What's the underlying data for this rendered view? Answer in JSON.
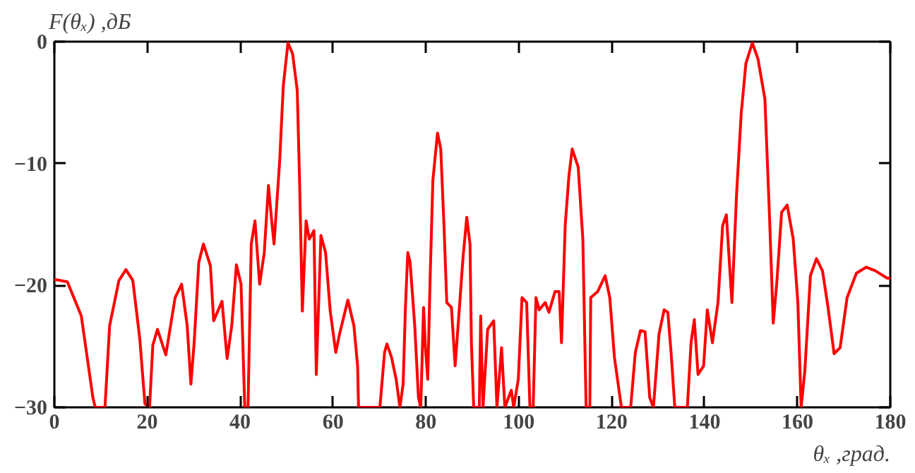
{
  "chart_data": {
    "type": "line",
    "xlabel": "θₓ ,град.",
    "ylabel": "F(θₓ) ,дБ",
    "xlim": [
      0,
      180
    ],
    "xticks": [
      0,
      20,
      40,
      60,
      80,
      100,
      120,
      140,
      160,
      180
    ],
    "ylim": [
      -30,
      0
    ],
    "yticks": [
      -30,
      -20,
      -10,
      0
    ],
    "grid": false,
    "marker": "none",
    "line_style": "solid",
    "x": [
      0,
      2.8,
      5.8,
      8.3,
      8.8,
      10.9,
      11.9,
      13.9,
      15.4,
      16.9,
      18.4,
      19.5,
      20.5,
      21.2,
      22.2,
      24,
      26,
      27.4,
      28.6,
      29.4,
      30.1,
      31.1,
      32.1,
      33.6,
      34.3,
      36.1,
      37.2,
      38.2,
      39.2,
      40.2,
      41,
      41.7,
      42.4,
      43.2,
      44.2,
      45.2,
      46.1,
      46.8,
      47.3,
      48.5,
      49.3,
      50.3,
      51.3,
      52.3,
      52.8,
      53.4,
      54.2,
      54.9,
      55.9,
      56.4,
      57.4,
      58.4,
      59.4,
      60.6,
      61.4,
      63.2,
      64.5,
      65.3,
      65.5,
      70.1,
      71.1,
      71.6,
      72.6,
      73.6,
      74.4,
      75.1,
      75.6,
      76.1,
      76.6,
      77.6,
      78.4,
      78.9,
      79.5,
      79.9,
      80.4,
      80.9,
      81.5,
      82.5,
      83.2,
      83.9,
      84.5,
      85.5,
      86.3,
      87.3,
      88,
      88.8,
      89.5,
      89.8,
      90.3,
      91.5,
      91.8,
      92.3,
      93.3,
      94.6,
      95.3,
      96.3,
      97,
      98.4,
      98.9,
      99.9,
      100.7,
      101.7,
      102.4,
      103.1,
      103.7,
      104.4,
      105.7,
      106.5,
      107.8,
      108.7,
      109.2,
      110,
      110.8,
      111.5,
      112.8,
      113.8,
      114.5,
      115.3,
      115.5,
      117,
      118.6,
      119.6,
      120.6,
      122.1,
      124.1,
      125.1,
      126.2,
      127.2,
      128.2,
      129,
      130.2,
      131.3,
      132.1,
      132.8,
      133.6,
      136.3,
      137.1,
      137.8,
      138.6,
      139.8,
      140.6,
      141.7,
      142.9,
      143.9,
      144.7,
      145.9,
      146.9,
      147.9,
      148.9,
      150.3,
      151.5,
      153,
      154,
      154.8,
      155.6,
      156.6,
      157.8,
      159.1,
      160.1,
      160.8,
      161.6,
      162.8,
      164.1,
      165.4,
      166.6,
      167.9,
      169.2,
      170.7,
      172.7,
      174.8,
      176.8,
      179.3,
      180
    ],
    "values": [
      -19.5,
      -19.7,
      -22.5,
      -29.2,
      -30,
      -30,
      -23.3,
      -19.6,
      -18.7,
      -19.6,
      -24.4,
      -29.7,
      -30,
      -24.9,
      -23.6,
      -25.7,
      -21,
      -19.9,
      -23.3,
      -28.1,
      -24.7,
      -18.1,
      -16.6,
      -18.4,
      -22.9,
      -21.3,
      -26,
      -23.3,
      -18.3,
      -19.9,
      -30,
      -30,
      -16.6,
      -14.7,
      -19.9,
      -17.3,
      -11.8,
      -14.7,
      -16.6,
      -9.9,
      -3.6,
      -0.1,
      -1,
      -4,
      -11.4,
      -22.1,
      -14.7,
      -16.2,
      -15.5,
      -27.3,
      -15.9,
      -17.3,
      -22.1,
      -25.5,
      -24,
      -21.2,
      -23.3,
      -26.6,
      -30,
      -30,
      -25.5,
      -24.8,
      -25.9,
      -27.7,
      -30,
      -28.1,
      -21.8,
      -17.3,
      -18.1,
      -23.3,
      -29.2,
      -30,
      -21.8,
      -25.1,
      -27.7,
      -19.6,
      -11.4,
      -7.5,
      -8.8,
      -15.1,
      -21.4,
      -21.8,
      -26.6,
      -21.4,
      -17.7,
      -14.4,
      -16.6,
      -24.7,
      -30,
      -30,
      -22.5,
      -30,
      -23.6,
      -22.9,
      -30,
      -25.1,
      -30,
      -28.6,
      -30,
      -27.7,
      -21,
      -21.4,
      -30,
      -30,
      -21,
      -22,
      -21.4,
      -22.2,
      -20.5,
      -20.5,
      -24.7,
      -15.1,
      -11,
      -8.8,
      -10.3,
      -16.2,
      -30,
      -30,
      -21,
      -20.5,
      -19.2,
      -21,
      -25.9,
      -30,
      -30,
      -25.5,
      -23.7,
      -23.8,
      -29.2,
      -30,
      -24,
      -22,
      -22.2,
      -25.5,
      -30,
      -30,
      -24.7,
      -22.8,
      -27.3,
      -26.6,
      -22,
      -24.7,
      -21.4,
      -15.1,
      -14.2,
      -21.4,
      -12.5,
      -5.9,
      -1.8,
      -0.1,
      -1.4,
      -4.7,
      -14.4,
      -23.1,
      -19.6,
      -14,
      -13.4,
      -16.2,
      -21.4,
      -30,
      -27,
      -19.2,
      -17.8,
      -18.8,
      -21.8,
      -25.6,
      -25.1,
      -21,
      -19,
      -18.5,
      -18.8,
      -19.4,
      -19.4
    ],
    "color": "#ff0000"
  }
}
